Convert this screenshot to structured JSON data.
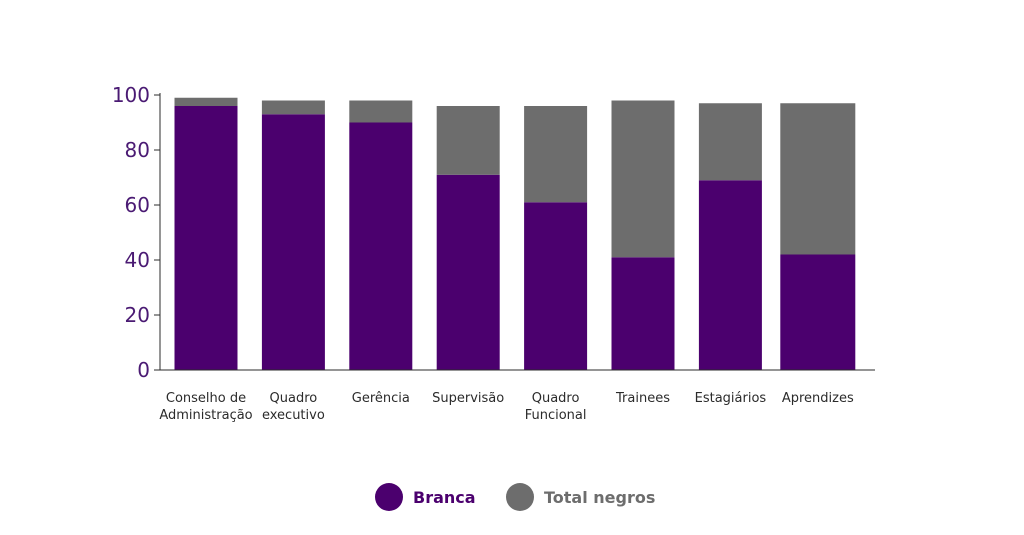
{
  "chart_data": {
    "type": "bar",
    "stacked": true,
    "categories": [
      [
        "Conselho de",
        "Administração"
      ],
      [
        "Quadro",
        "executivo"
      ],
      [
        "Gerência"
      ],
      [
        "Supervisão"
      ],
      [
        "Quadro",
        "Funcional"
      ],
      [
        "Trainees"
      ],
      [
        "Estagiários"
      ],
      [
        "Aprendizes"
      ]
    ],
    "series": [
      {
        "name": "Branca",
        "color": "#4b006e",
        "values": [
          96,
          93,
          90,
          71,
          61,
          41,
          69,
          42
        ]
      },
      {
        "name": "Total negros",
        "color": "#6d6d6d",
        "values": [
          3,
          5,
          8,
          25,
          35,
          57,
          28,
          55
        ]
      }
    ],
    "yticks": [
      "0",
      "20",
      "40",
      "60",
      "80",
      "100"
    ],
    "ylim": [
      0,
      100
    ],
    "grid": false,
    "legend_position": "bottom-center",
    "title": "",
    "xlabel": "",
    "ylabel": ""
  }
}
